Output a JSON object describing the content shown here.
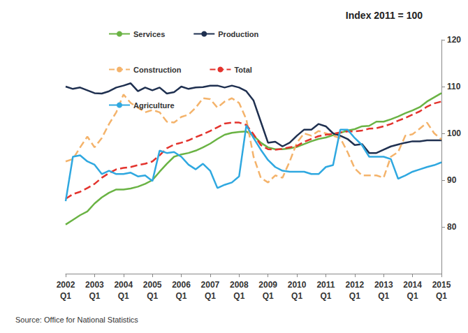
{
  "chart_data": {
    "type": "line",
    "title": "Index 2011 = 100",
    "annotations": [
      "Source: Office for National Statistics"
    ],
    "categories": [
      "2002 Q1",
      null,
      null,
      null,
      "2003 Q1",
      null,
      null,
      null,
      "2004 Q1",
      null,
      null,
      null,
      "2005 Q1",
      null,
      null,
      null,
      "2006 Q1",
      null,
      null,
      null,
      "2007 Q1",
      null,
      null,
      null,
      "2008 Q1",
      null,
      null,
      null,
      "2009 Q1",
      null,
      null,
      null,
      "2010 Q1",
      null,
      null,
      null,
      "2011 Q1",
      null,
      null,
      null,
      "2012 Q1",
      null,
      null,
      null,
      "2013 Q1",
      null,
      null,
      null,
      "2014 Q1",
      null,
      null,
      null,
      "2015 Q1"
    ],
    "series": [
      {
        "name": "Services",
        "color": "#6ab344",
        "line_style": "solid",
        "marker": "none",
        "values": [
          80.5,
          81.5,
          82.5,
          83.3,
          85,
          86.3,
          87.3,
          88,
          88,
          88.2,
          88.6,
          89.2,
          90,
          91.8,
          93.5,
          95,
          95.5,
          95.8,
          96.3,
          97,
          97.8,
          98.8,
          99.7,
          100.1,
          100.3,
          100.4,
          99.5,
          98,
          97,
          96.6,
          96.6,
          96.8,
          97.1,
          97.7,
          98.3,
          98.8,
          99.1,
          99.6,
          100.1,
          100.6,
          100.9,
          101.5,
          101.6,
          102.5,
          102.5,
          103,
          103.6,
          104.3,
          104.9,
          105.6,
          106.8,
          107.7,
          108.6
        ]
      },
      {
        "name": "Production",
        "color": "#1f3050",
        "line_style": "solid",
        "marker": "none",
        "values": [
          110,
          109.5,
          109.8,
          109.2,
          108.6,
          108.5,
          109,
          109.8,
          110.2,
          110.7,
          109,
          109.8,
          109.2,
          109.8,
          108.5,
          108.8,
          110,
          109.5,
          109.8,
          109.9,
          110.2,
          110.2,
          109.8,
          110.2,
          109.8,
          109,
          107,
          102.5,
          98,
          98.2,
          97.2,
          98,
          99.5,
          100.8,
          100.8,
          102,
          101.5,
          100,
          99.5,
          98.8,
          97.5,
          97.7,
          95.8,
          95.8,
          96.5,
          97.2,
          97.6,
          98,
          98.3,
          98.3,
          98.5,
          98.5,
          98.5
        ]
      },
      {
        "name": "Construction",
        "color": "#f4b36b",
        "line_style": "dashed",
        "marker": "none",
        "values": [
          94,
          94.5,
          97,
          99.3,
          97,
          99,
          102,
          104.5,
          108.3,
          106.5,
          105.5,
          104.5,
          105,
          104.5,
          102.5,
          102.3,
          103.5,
          104,
          105.5,
          107.5,
          107.3,
          105.5,
          106.8,
          107.5,
          106.5,
          103,
          95,
          90.5,
          89.5,
          91,
          90.5,
          94,
          98,
          100,
          99.5,
          100.5,
          100,
          99.5,
          99,
          96,
          92.5,
          91,
          91,
          91,
          90.5,
          95,
          96,
          99.5,
          99.8,
          101,
          102.3,
          100,
          98.7
        ]
      },
      {
        "name": "Total",
        "color": "#e3332d",
        "line_style": "dashed",
        "marker": "none",
        "values": [
          86,
          87,
          87.5,
          88.3,
          89.2,
          90.5,
          91.5,
          92.3,
          92.6,
          92.8,
          93.2,
          93.5,
          94,
          95.3,
          96.8,
          97.6,
          98,
          98.5,
          99.2,
          99.8,
          100.5,
          101.3,
          102.1,
          102.3,
          102.3,
          101.8,
          99.8,
          97.5,
          96.6,
          96.5,
          96.7,
          97,
          97.3,
          98.2,
          98.8,
          99.4,
          99.7,
          99.9,
          100.2,
          100.4,
          100.4,
          100.6,
          101,
          101.1,
          101.5,
          102,
          102.7,
          103.3,
          104,
          104.7,
          105.7,
          106.4,
          106.8
        ]
      },
      {
        "name": "Agriculture",
        "color": "#2fa8e0",
        "line_style": "solid",
        "marker": "none",
        "values": [
          85.5,
          95,
          95.3,
          94,
          93.3,
          91.3,
          92,
          91.3,
          91.3,
          91.6,
          90.8,
          91,
          89.8,
          96.3,
          95.8,
          96,
          95,
          93.3,
          92.3,
          93.5,
          92,
          88.3,
          89,
          89.5,
          90.8,
          101.7,
          99,
          96.5,
          94.3,
          92.8,
          92,
          91.8,
          91.8,
          91.8,
          91.3,
          91.3,
          92.8,
          93.2,
          100.8,
          100.8,
          99,
          97.5,
          95,
          95,
          95,
          94.5,
          90.3,
          91,
          91.8,
          92.3,
          92.8,
          93.2,
          93.8
        ]
      }
    ],
    "ylim": [
      70,
      120
    ],
    "yticks": [
      80,
      90,
      100,
      110,
      120
    ],
    "grid": false,
    "legend": "upper left"
  }
}
